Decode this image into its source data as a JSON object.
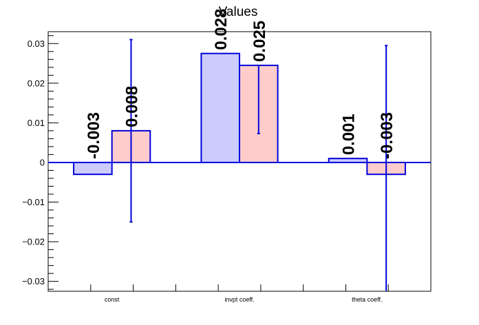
{
  "chart_data": {
    "type": "bar",
    "title": "Values",
    "xlabel": "",
    "ylabel": "",
    "categories": [
      "const",
      "invpt coeff.",
      "theta coeff."
    ],
    "ylim": [
      -0.0325,
      0.033
    ],
    "y_ticks": [
      {
        "value": 0.03,
        "label": "0.03"
      },
      {
        "value": 0.02,
        "label": "0.02"
      },
      {
        "value": 0.01,
        "label": "0.01"
      },
      {
        "value": 0,
        "label": "0"
      },
      {
        "value": -0.01,
        "label": "−0.01"
      },
      {
        "value": -0.02,
        "label": "−0.02"
      },
      {
        "value": -0.03,
        "label": "−0.03"
      }
    ],
    "series": [
      {
        "values": [
          -0.003,
          0.0275,
          0.001
        ],
        "labels": [
          "-0.003",
          "0.028",
          "0.001"
        ],
        "fill": "#ccccff",
        "stroke": "#0000dd",
        "error": null
      },
      {
        "values": [
          0.008,
          0.0245,
          -0.003
        ],
        "labels": [
          "0.008",
          "0.025",
          "-0.003"
        ],
        "fill": "#ffcccc",
        "stroke": "#0000dd",
        "error": [
          [
            -0.015,
            0.031
          ],
          [
            0.0073,
            0.0245
          ],
          [
            -0.034,
            0.0295
          ]
        ]
      }
    ],
    "grid": false,
    "legend": "none",
    "zero_line_color": "#0000dd"
  }
}
